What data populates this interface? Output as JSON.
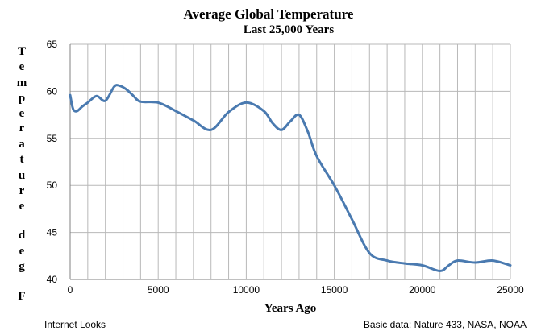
{
  "chart_data": {
    "type": "line",
    "title": "Average Global Temperature",
    "subtitle": "Last 25,000 Years",
    "xlabel": "Years Ago",
    "ylabel": "Temperature deg F",
    "xlim": [
      0,
      25000
    ],
    "ylim": [
      40,
      65
    ],
    "x_ticks": [
      0,
      5000,
      10000,
      15000,
      20000,
      25000
    ],
    "y_ticks": [
      40,
      45,
      50,
      55,
      60,
      65
    ],
    "grid": true,
    "line_color": "#4a7ab0",
    "series": [
      {
        "x": [
          0,
          100,
          200,
          400,
          700,
          1000,
          1500,
          2000,
          2500,
          2800,
          3200,
          3600,
          4000,
          5000,
          6000,
          7000,
          8000,
          9000,
          10000,
          11000,
          11500,
          12000,
          12500,
          13000,
          13500,
          14000,
          15000,
          16000,
          17000,
          18000,
          19000,
          20000,
          21000,
          21500,
          22000,
          23000,
          24000,
          25000
        ],
        "y": [
          59.6,
          58.6,
          58.0,
          57.9,
          58.4,
          58.8,
          59.5,
          59.0,
          60.5,
          60.6,
          60.2,
          59.5,
          58.9,
          58.8,
          57.9,
          56.9,
          55.9,
          57.8,
          58.8,
          57.9,
          56.6,
          55.9,
          56.8,
          57.5,
          55.7,
          53.1,
          50.0,
          46.4,
          42.8,
          42.0,
          41.7,
          41.5,
          40.9,
          41.5,
          42.0,
          41.8,
          42.0,
          41.5
        ]
      }
    ]
  },
  "ylabel_letters": [
    "T",
    "e",
    "m",
    "p",
    "e",
    "r",
    "a",
    "t",
    "u",
    "r",
    "e",
    "d",
    "e",
    "g",
    "F"
  ],
  "footer": {
    "left": "Internet Looks",
    "right": "Basic data: Nature 433, NASA, NOAA"
  }
}
